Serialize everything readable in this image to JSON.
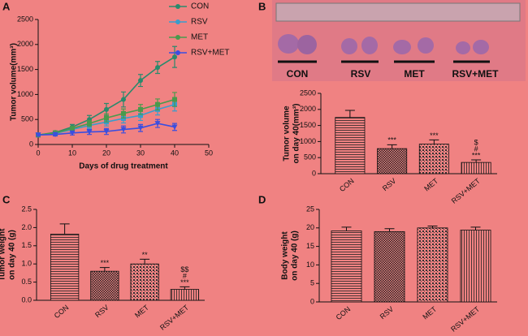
{
  "photo": {
    "labels": [
      "CON",
      "RSV",
      "MET",
      "RSV+MET"
    ]
  },
  "chart_data": [
    {
      "type": "line",
      "panel": "A",
      "ylabel": [
        "Tumor volume(mm³)"
      ],
      "xlabel": "Days of drug treatment",
      "xlim": [
        0,
        50
      ],
      "xticks": [
        0,
        10,
        20,
        30,
        40,
        50
      ],
      "ylim": [
        0,
        2500
      ],
      "yticks": [
        0,
        500,
        1000,
        1500,
        2000,
        2500
      ],
      "x": [
        0,
        5,
        10,
        15,
        20,
        25,
        30,
        35,
        40
      ],
      "series": [
        {
          "name": "CON",
          "color": "#2a8a6c",
          "marker": "circle",
          "values": [
            190,
            240,
            350,
            500,
            700,
            900,
            1280,
            1540,
            1750
          ],
          "errors": [
            20,
            30,
            50,
            80,
            120,
            150,
            120,
            120,
            210
          ]
        },
        {
          "name": "RSV",
          "color": "#3a9ccc",
          "marker": "square",
          "values": [
            190,
            220,
            300,
            380,
            450,
            520,
            580,
            700,
            800
          ],
          "errors": [
            20,
            30,
            40,
            60,
            80,
            90,
            100,
            110,
            130
          ]
        },
        {
          "name": "MET",
          "color": "#4a9a4c",
          "marker": "square",
          "values": [
            190,
            230,
            320,
            420,
            530,
            620,
            700,
            800,
            900
          ],
          "errors": [
            20,
            30,
            40,
            60,
            80,
            90,
            100,
            110,
            140
          ]
        },
        {
          "name": "RSV+MET",
          "color": "#3a4ee0",
          "marker": "triangle",
          "values": [
            190,
            200,
            230,
            250,
            260,
            300,
            330,
            420,
            350
          ],
          "errors": [
            20,
            30,
            40,
            50,
            60,
            70,
            70,
            80,
            70
          ]
        }
      ]
    },
    {
      "type": "bar",
      "panel": "B",
      "ylabel": [
        "Tumor volume",
        "on day 40(mm³)"
      ],
      "categories": [
        "CON",
        "RSV",
        "MET",
        "RSV+MET"
      ],
      "values": [
        1750,
        780,
        920,
        350
      ],
      "errors": [
        220,
        120,
        130,
        80
      ],
      "annotations": [
        [],
        [
          "***"
        ],
        [
          "***"
        ],
        [
          "$",
          "#",
          "***"
        ]
      ],
      "ylim": [
        0,
        2500
      ],
      "yticks": [
        0,
        500,
        1000,
        1500,
        2000,
        2500
      ]
    },
    {
      "type": "bar",
      "panel": "C",
      "ylabel": [
        "Tumor weight",
        "on day 40 (g)"
      ],
      "categories": [
        "CON",
        "RSV",
        "MET",
        "RSV+MET"
      ],
      "values": [
        1.82,
        0.8,
        1.0,
        0.3
      ],
      "errors": [
        0.28,
        0.1,
        0.13,
        0.07
      ],
      "annotations": [
        [],
        [
          "***"
        ],
        [
          "**"
        ],
        [
          "$$",
          "#",
          "***"
        ]
      ],
      "ylim": [
        0,
        2.5
      ],
      "yticks": [
        {
          "value": 0,
          "label": "0.0"
        },
        0.5,
        {
          "value": 1,
          "label": "1.0"
        },
        1.5,
        {
          "value": 2,
          "label": "2.0"
        },
        2.5
      ]
    },
    {
      "type": "bar",
      "panel": "D",
      "ylabel": [
        "Body weight",
        "on day 40 (g)"
      ],
      "categories": [
        "CON",
        "RSV",
        "MET",
        "RSV+MET"
      ],
      "values": [
        19.2,
        19.0,
        20.0,
        19.4
      ],
      "errors": [
        1.0,
        0.8,
        0.5,
        0.8
      ],
      "ylim": [
        0,
        25
      ],
      "yticks": [
        0,
        5,
        10,
        15,
        20,
        25
      ]
    }
  ]
}
